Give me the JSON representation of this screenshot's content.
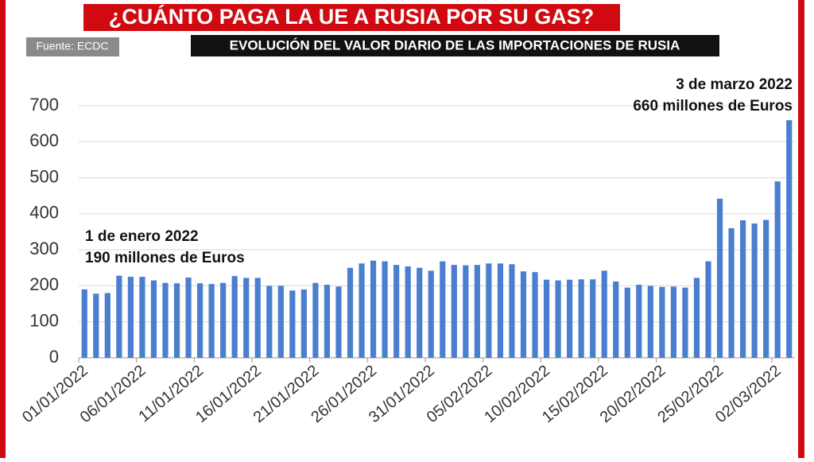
{
  "title": "¿CUÁNTO PAGA LA UE A RUSIA POR SU GAS?",
  "source": "Fuente: ECDC",
  "chart_data": {
    "type": "bar",
    "subtitle": "EVOLUCIÓN DEL VALOR DIARIO DE LAS IMPORTACIONES DE RUSIA",
    "categories": [
      "01/01/2022",
      null,
      null,
      null,
      null,
      "06/01/2022",
      null,
      null,
      null,
      null,
      "11/01/2022",
      null,
      null,
      null,
      null,
      "16/01/2022",
      null,
      null,
      null,
      null,
      "21/01/2022",
      null,
      null,
      null,
      null,
      "26/01/2022",
      null,
      null,
      null,
      null,
      "31/01/2022",
      null,
      null,
      null,
      null,
      "05/02/2022",
      null,
      null,
      null,
      null,
      "10/02/2022",
      null,
      null,
      null,
      null,
      "15/02/2022",
      null,
      null,
      null,
      null,
      "20/02/2022",
      null,
      null,
      null,
      null,
      "25/02/2022",
      null,
      null,
      null,
      null,
      "02/03/2022",
      null
    ],
    "values": [
      190,
      178,
      180,
      228,
      225,
      225,
      215,
      208,
      207,
      223,
      207,
      205,
      208,
      227,
      222,
      222,
      200,
      200,
      187,
      190,
      208,
      203,
      198,
      250,
      262,
      270,
      268,
      258,
      254,
      250,
      242,
      268,
      258,
      257,
      258,
      262,
      262,
      260,
      240,
      238,
      217,
      215,
      217,
      218,
      218,
      242,
      212,
      195,
      203,
      200,
      197,
      198,
      195,
      222,
      268,
      442,
      360,
      382,
      373,
      383,
      490,
      660
    ],
    "color": "#4a7fcf",
    "ylim": [
      0,
      700
    ],
    "yticks": [
      0,
      100,
      200,
      300,
      400,
      500,
      600,
      700
    ],
    "grid": true,
    "annotations": [
      [
        "1 de enero 2022",
        "190 millones de Euros"
      ],
      [
        "3 de marzo 2022",
        "660 millones de Euros"
      ]
    ]
  }
}
